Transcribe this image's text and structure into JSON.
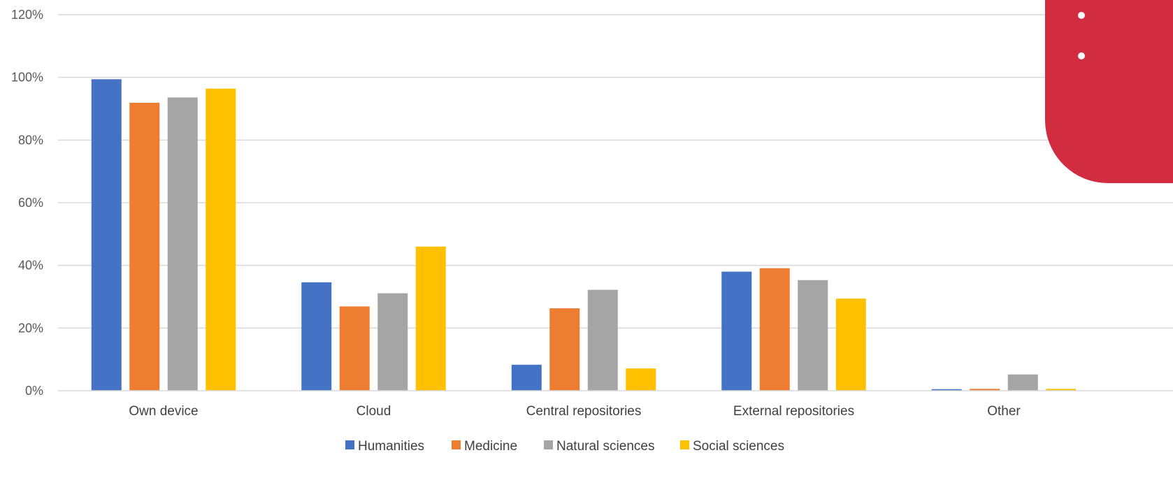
{
  "chart_data": {
    "type": "bar",
    "title": "",
    "xlabel": "",
    "ylabel": "",
    "categories": [
      "Own device",
      "Cloud",
      "Central repositories",
      "External repositories",
      "Other"
    ],
    "series": [
      {
        "name": "Humanities",
        "color": "#4472C4",
        "values": [
          99.4,
          34.6,
          8.3,
          38.0,
          0.5
        ]
      },
      {
        "name": "Medicine",
        "color": "#ED7D31",
        "values": [
          91.9,
          26.9,
          26.3,
          39.1,
          0.6
        ]
      },
      {
        "name": "Natural sciences",
        "color": "#A5A5A5",
        "values": [
          93.6,
          31.1,
          32.2,
          35.3,
          5.2
        ]
      },
      {
        "name": "Social sciences",
        "color": "#FFC000",
        "values": [
          96.4,
          46.0,
          7.1,
          29.4,
          0.6
        ]
      }
    ],
    "ylim": [
      0,
      120
    ],
    "yticks": [
      "0%",
      "20%",
      "40%",
      "60%",
      "80%",
      "100%",
      "120%"
    ],
    "ytick_values": [
      0,
      20,
      40,
      60,
      80,
      100,
      120
    ],
    "grid": true,
    "legend": "bottom"
  },
  "decoration": {
    "name": "corner-tab",
    "color": "#D12C3F",
    "bullet_color": "#ffffff"
  }
}
